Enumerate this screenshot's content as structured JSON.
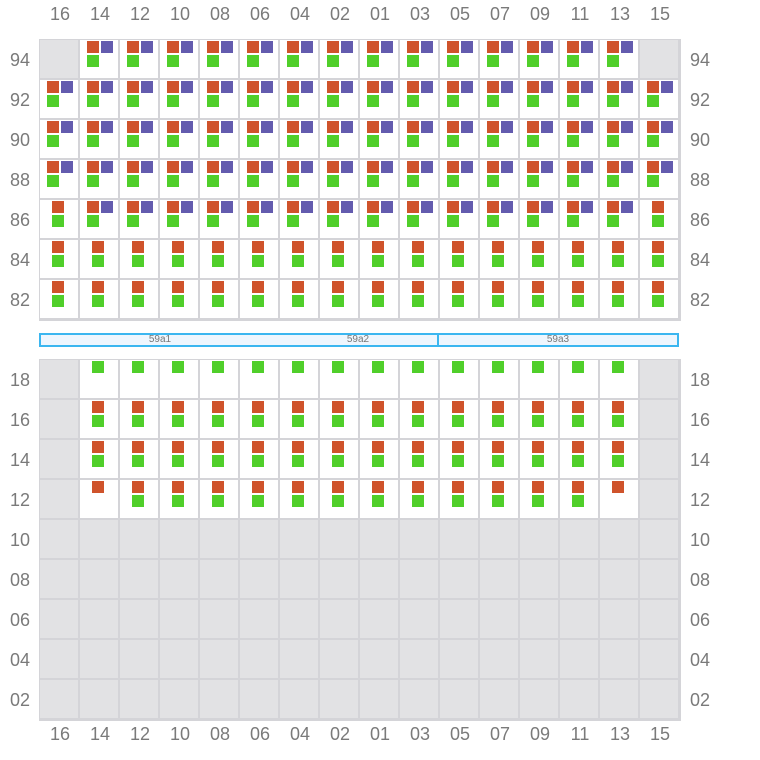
{
  "columns": [
    "16",
    "14",
    "12",
    "10",
    "08",
    "06",
    "04",
    "02",
    "01",
    "03",
    "05",
    "07",
    "09",
    "11",
    "13",
    "15"
  ],
  "colors": {
    "red": "#cf532b",
    "blue": "#635bae",
    "green": "#50cf2a",
    "disabled": "#e2e2e4",
    "zone_border": "#3bb6f0"
  },
  "zones": [
    {
      "label": "59a1",
      "span": 6
    },
    {
      "label": "59a2",
      "span": 4
    },
    {
      "label": "59a3",
      "span": 6
    }
  ],
  "sections": [
    {
      "name": "upper",
      "rows": [
        {
          "label": "94",
          "cells": [
            "off",
            "rbg",
            "rbg",
            "rbg",
            "rbg",
            "rbg",
            "rbg",
            "rbg",
            "rbg",
            "rbg",
            "rbg",
            "rbg",
            "rbg",
            "rbg",
            "rbg",
            "off"
          ]
        },
        {
          "label": "92",
          "cells": [
            "rbg",
            "rbg",
            "rbg",
            "rbg",
            "rbg",
            "rbg",
            "rbg",
            "rbg",
            "rbg",
            "rbg",
            "rbg",
            "rbg",
            "rbg",
            "rbg",
            "rbg",
            "rbg"
          ]
        },
        {
          "label": "90",
          "cells": [
            "rbg",
            "rbg",
            "rbg",
            "rbg",
            "rbg",
            "rbg",
            "rbg",
            "rbg",
            "rbg",
            "rbg",
            "rbg",
            "rbg",
            "rbg",
            "rbg",
            "rbg",
            "rbg"
          ]
        },
        {
          "label": "88",
          "cells": [
            "rbg",
            "rbg",
            "rbg",
            "rbg",
            "rbg",
            "rbg",
            "rbg",
            "rbg",
            "rbg",
            "rbg",
            "rbg",
            "rbg",
            "rbg",
            "rbg",
            "rbg",
            "rbg"
          ]
        },
        {
          "label": "86",
          "cells": [
            "rg",
            "rbg",
            "rbg",
            "rbg",
            "rbg",
            "rbg",
            "rbg",
            "rbg",
            "rbg",
            "rbg",
            "rbg",
            "rbg",
            "rbg",
            "rbg",
            "rbg",
            "rg"
          ]
        },
        {
          "label": "84",
          "cells": [
            "rg",
            "rg",
            "rg",
            "rg",
            "rg",
            "rg",
            "rg",
            "rg",
            "rg",
            "rg",
            "rg",
            "rg",
            "rg",
            "rg",
            "rg",
            "rg"
          ]
        },
        {
          "label": "82",
          "cells": [
            "rg",
            "rg",
            "rg",
            "rg",
            "rg",
            "rg",
            "rg",
            "rg",
            "rg",
            "rg",
            "rg",
            "rg",
            "rg",
            "rg",
            "rg",
            "rg"
          ]
        }
      ]
    },
    {
      "name": "lower",
      "rows": [
        {
          "label": "18",
          "cells": [
            "off",
            "g",
            "g",
            "g",
            "g",
            "g",
            "g",
            "g",
            "g",
            "g",
            "g",
            "g",
            "g",
            "g",
            "g",
            "off"
          ]
        },
        {
          "label": "16",
          "cells": [
            "off",
            "rg",
            "rg",
            "rg",
            "rg",
            "rg",
            "rg",
            "rg",
            "rg",
            "rg",
            "rg",
            "rg",
            "rg",
            "rg",
            "rg",
            "off"
          ]
        },
        {
          "label": "14",
          "cells": [
            "off",
            "rg",
            "rg",
            "rg",
            "rg",
            "rg",
            "rg",
            "rg",
            "rg",
            "rg",
            "rg",
            "rg",
            "rg",
            "rg",
            "rg",
            "off"
          ]
        },
        {
          "label": "12",
          "cells": [
            "off",
            "r",
            "rg",
            "rg",
            "rg",
            "rg",
            "rg",
            "rg",
            "rg",
            "rg",
            "rg",
            "rg",
            "rg",
            "rg",
            "r",
            "off"
          ]
        },
        {
          "label": "10",
          "cells": [
            "off",
            "off",
            "off",
            "off",
            "off",
            "off",
            "off",
            "off",
            "off",
            "off",
            "off",
            "off",
            "off",
            "off",
            "off",
            "off"
          ]
        },
        {
          "label": "08",
          "cells": [
            "off",
            "off",
            "off",
            "off",
            "off",
            "off",
            "off",
            "off",
            "off",
            "off",
            "off",
            "off",
            "off",
            "off",
            "off",
            "off"
          ]
        },
        {
          "label": "06",
          "cells": [
            "off",
            "off",
            "off",
            "off",
            "off",
            "off",
            "off",
            "off",
            "off",
            "off",
            "off",
            "off",
            "off",
            "off",
            "off",
            "off"
          ]
        },
        {
          "label": "04",
          "cells": [
            "off",
            "off",
            "off",
            "off",
            "off",
            "off",
            "off",
            "off",
            "off",
            "off",
            "off",
            "off",
            "off",
            "off",
            "off",
            "off"
          ]
        },
        {
          "label": "02",
          "cells": [
            "off",
            "off",
            "off",
            "off",
            "off",
            "off",
            "off",
            "off",
            "off",
            "off",
            "off",
            "off",
            "off",
            "off",
            "off",
            "off"
          ]
        }
      ]
    }
  ]
}
